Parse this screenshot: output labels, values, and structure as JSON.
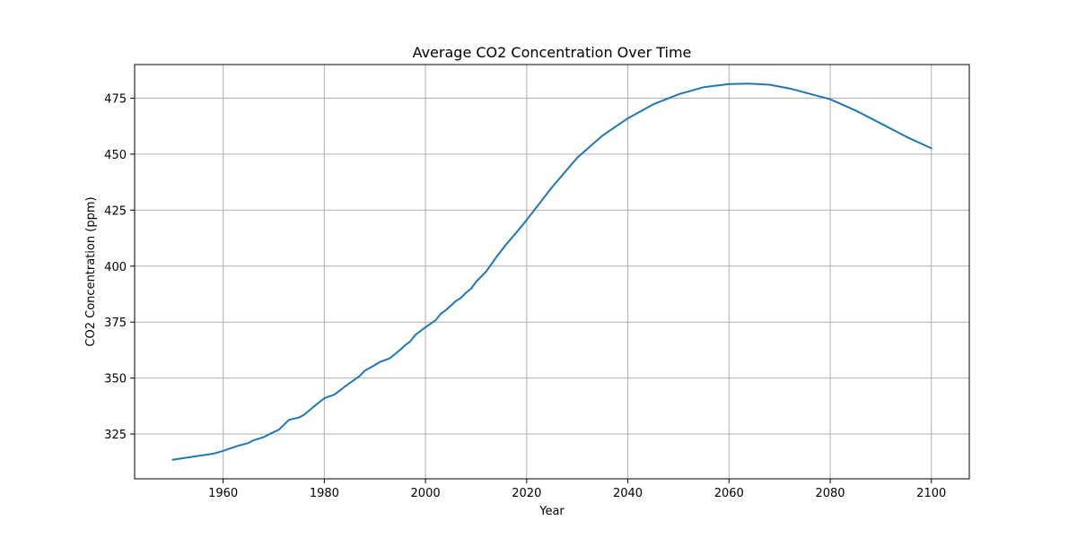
{
  "chart_data": {
    "type": "line",
    "title": "Average CO2 Concentration Over Time",
    "xlabel": "Year",
    "ylabel": "CO2 Concentration (ppm)",
    "xlim": [
      1942.5,
      2107.5
    ],
    "ylim": [
      305,
      490
    ],
    "grid": true,
    "x_ticks": [
      1960,
      1980,
      2000,
      2020,
      2040,
      2060,
      2080,
      2100
    ],
    "y_ticks": [
      325,
      350,
      375,
      400,
      425,
      450,
      475
    ],
    "series": [
      {
        "color": "#1f77b4",
        "x": [
          1950,
          1955,
          1958,
          1960,
          1963,
          1965,
          1966,
          1968,
          1970,
          1971,
          1973,
          1975,
          1976,
          1978,
          1980,
          1982,
          1984,
          1986,
          1987,
          1988,
          1990,
          1991,
          1993,
          1995,
          1996,
          1997,
          1998,
          2000,
          2002,
          2003,
          2004,
          2006,
          2007,
          2008,
          2009,
          2010,
          2012,
          2014,
          2016,
          2018,
          2020,
          2025,
          2030,
          2035,
          2040,
          2045,
          2050,
          2055,
          2060,
          2064,
          2068,
          2072,
          2076,
          2080,
          2085,
          2090,
          2095,
          2100
        ],
        "values": [
          313.5,
          315.2,
          316.2,
          317.5,
          319.8,
          321.0,
          322.2,
          323.6,
          325.9,
          326.9,
          331.3,
          332.4,
          333.6,
          337.4,
          341.0,
          342.6,
          346.1,
          349.3,
          350.9,
          353.3,
          355.8,
          357.2,
          358.9,
          362.6,
          364.7,
          366.4,
          369.3,
          372.7,
          375.8,
          378.7,
          380.3,
          384.4,
          385.8,
          388.1,
          389.9,
          393.0,
          397.6,
          404.0,
          409.8,
          415.1,
          420.6,
          435.2,
          448.4,
          458.3,
          466.0,
          472.2,
          476.7,
          479.9,
          481.3,
          481.5,
          481.0,
          479.3,
          476.9,
          474.5,
          469.5,
          463.7,
          457.8,
          452.6
        ]
      }
    ]
  }
}
